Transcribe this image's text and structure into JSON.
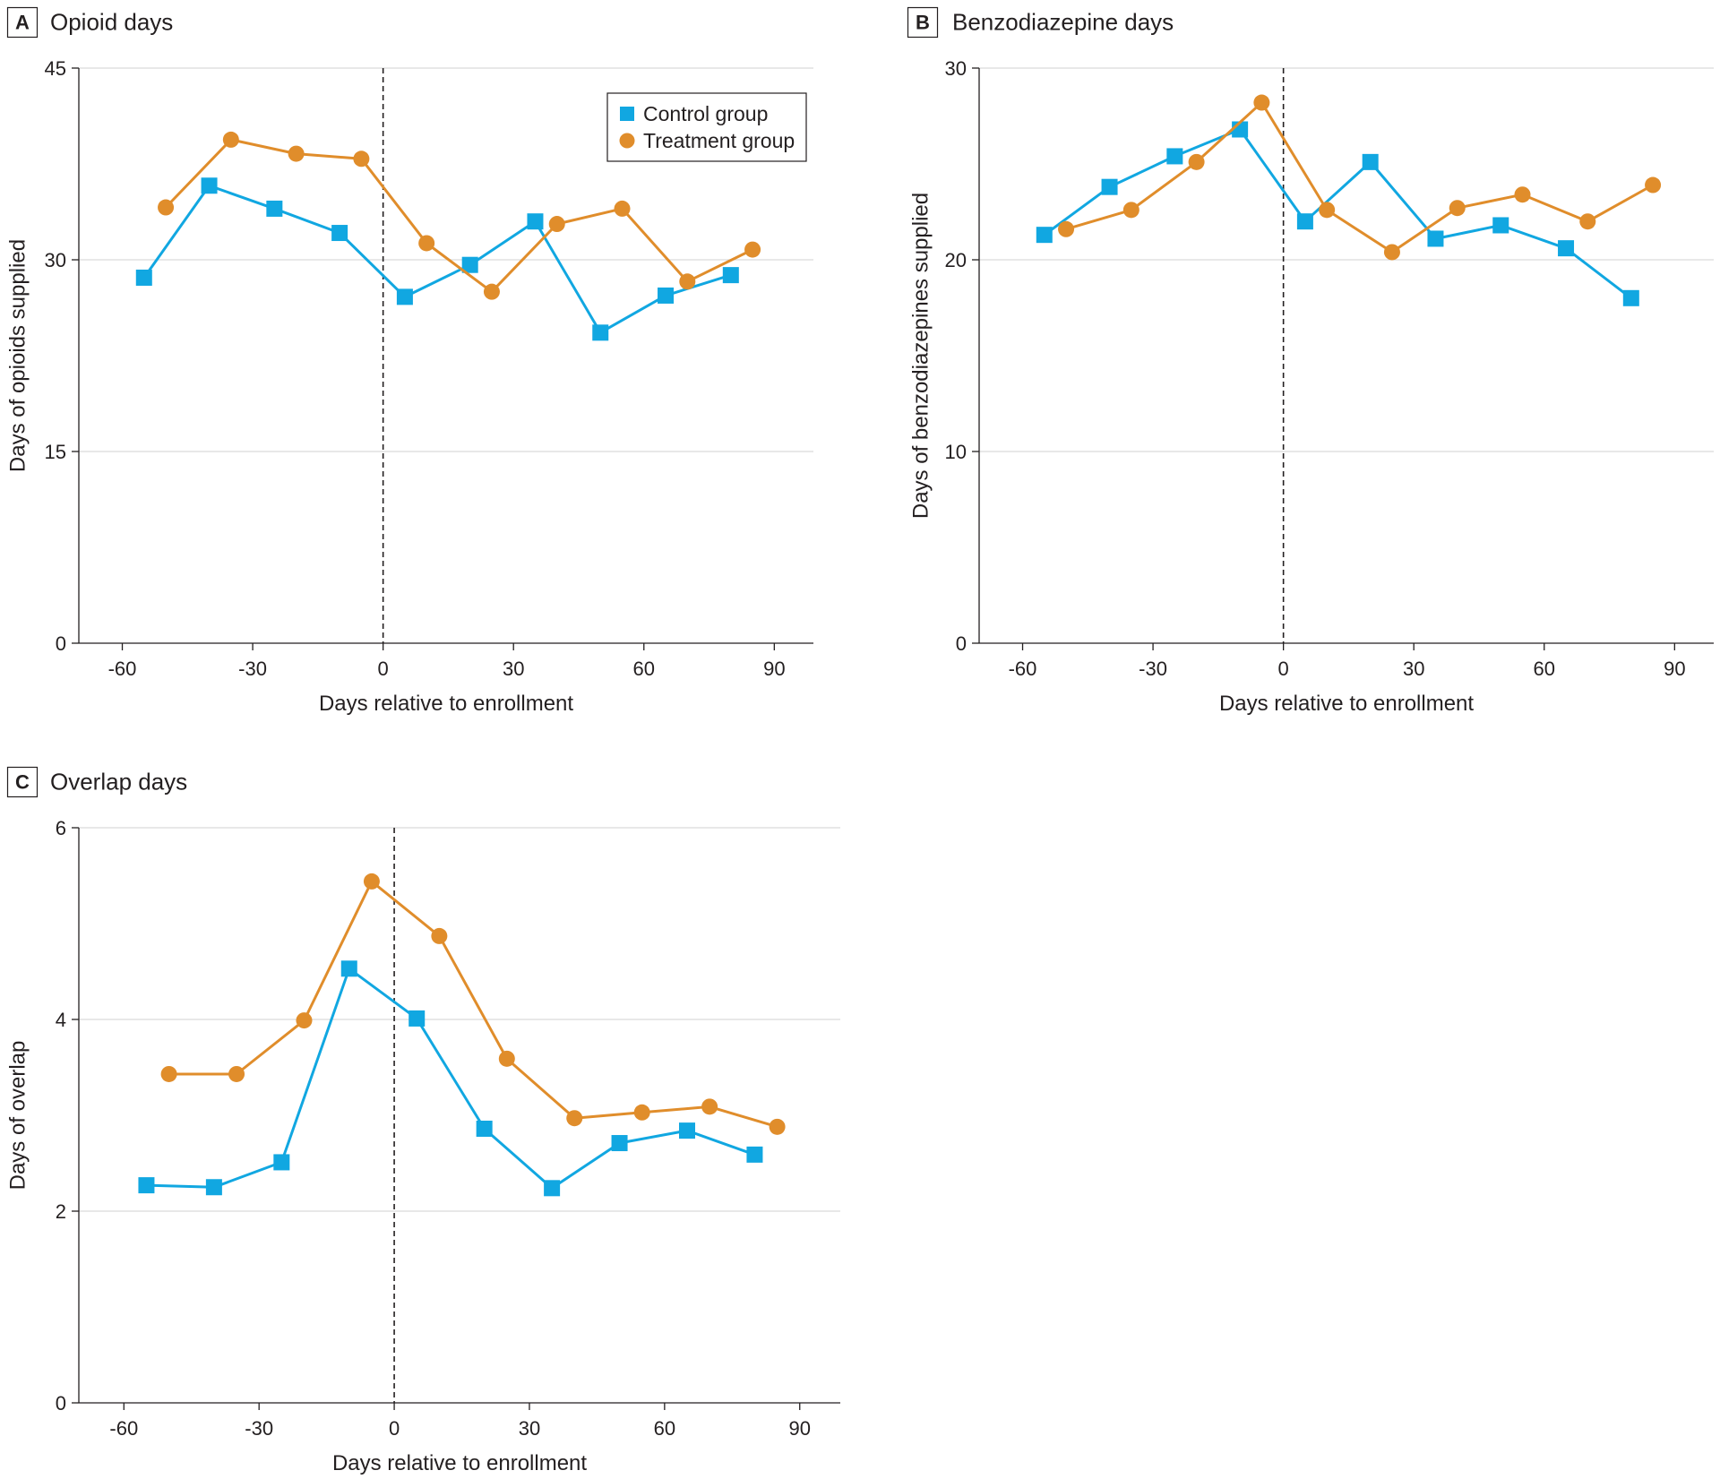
{
  "colors": {
    "control": "#11a7e1",
    "treatment": "#e08d2b",
    "grid": "#d9d9d9",
    "axis": "#231f20",
    "text": "#231f20"
  },
  "legend": {
    "control_label": "Control group",
    "treatment_label": "Treatment group",
    "control_marker": "square",
    "treatment_marker": "circle",
    "placement": "top-right of panel A"
  },
  "chart_data": [
    {
      "id": "A",
      "type": "line",
      "panel_letter": "A",
      "title": "Opioid days",
      "xlabel": "Days relative to enrollment",
      "ylabel": "Days of opioids supplied",
      "xlim": [
        -70,
        99
      ],
      "ylim": [
        0,
        45
      ],
      "xticks": [
        -60,
        -30,
        0,
        30,
        60,
        90
      ],
      "xtick_labels": [
        "-60",
        "-30",
        "0",
        "30",
        "60",
        "90"
      ],
      "yticks": [
        0,
        15,
        30,
        45
      ],
      "ytick_labels": [
        "0",
        "15",
        "30",
        "45"
      ],
      "grid": "horizontal at y ticks",
      "reference_line_x": 0,
      "series": [
        {
          "name": "Control group",
          "marker": "square",
          "x": [
            -55,
            -40,
            -25,
            -10,
            5,
            20,
            35,
            50,
            65,
            80
          ],
          "y": [
            28.6,
            35.8,
            34.0,
            32.1,
            27.1,
            29.6,
            33.0,
            24.3,
            27.2,
            28.8
          ]
        },
        {
          "name": "Treatment group",
          "marker": "circle",
          "x": [
            -50,
            -35,
            -20,
            -5,
            10,
            25,
            40,
            55,
            70,
            85
          ],
          "y": [
            34.1,
            39.4,
            38.3,
            37.9,
            31.3,
            27.5,
            32.8,
            34.0,
            28.3,
            30.8
          ]
        }
      ]
    },
    {
      "id": "B",
      "type": "line",
      "panel_letter": "B",
      "title": "Benzodiazepine days",
      "xlabel": "Days relative to enrollment",
      "ylabel": "Days of benzodiazepines supplied",
      "xlim": [
        -70,
        99
      ],
      "ylim": [
        0,
        30
      ],
      "xticks": [
        -60,
        -30,
        0,
        30,
        60,
        90
      ],
      "xtick_labels": [
        "-60",
        "-30",
        "0",
        "30",
        "60",
        "90"
      ],
      "yticks": [
        0,
        10,
        20,
        30
      ],
      "ytick_labels": [
        "0",
        "10",
        "20",
        "30"
      ],
      "grid": "horizontal at y ticks",
      "reference_line_x": 0,
      "series": [
        {
          "name": "Control group",
          "marker": "square",
          "x": [
            -55,
            -40,
            -25,
            -10,
            5,
            20,
            35,
            50,
            65,
            80
          ],
          "y": [
            21.3,
            23.8,
            25.4,
            26.8,
            22.0,
            25.1,
            21.1,
            21.8,
            20.6,
            18.0
          ]
        },
        {
          "name": "Treatment group",
          "marker": "circle",
          "x": [
            -50,
            -35,
            -20,
            -5,
            10,
            25,
            40,
            55,
            70,
            85
          ],
          "y": [
            21.6,
            22.6,
            25.1,
            28.2,
            22.6,
            20.4,
            22.7,
            23.4,
            22.0,
            23.9
          ]
        }
      ]
    },
    {
      "id": "C",
      "type": "line",
      "panel_letter": "C",
      "title": "Overlap days",
      "xlabel": "Days relative to enrollment",
      "ylabel": "Days of overlap",
      "xlim": [
        -70,
        99
      ],
      "ylim": [
        0,
        6
      ],
      "xticks": [
        -60,
        -30,
        0,
        30,
        60,
        90
      ],
      "xtick_labels": [
        "-60",
        "-30",
        "0",
        "30",
        "60",
        "90"
      ],
      "yticks": [
        0,
        2,
        4,
        6
      ],
      "ytick_labels": [
        "0",
        "2",
        "4",
        "6"
      ],
      "grid": "horizontal at y ticks",
      "reference_line_x": 0,
      "series": [
        {
          "name": "Control group",
          "marker": "square",
          "x": [
            -55,
            -40,
            -25,
            -10,
            5,
            20,
            35,
            50,
            65,
            80
          ],
          "y": [
            2.27,
            2.25,
            2.51,
            4.53,
            4.01,
            2.86,
            2.24,
            2.71,
            2.84,
            2.59
          ]
        },
        {
          "name": "Treatment group",
          "marker": "circle",
          "x": [
            -50,
            -35,
            -20,
            -5,
            10,
            25,
            40,
            55,
            70,
            85
          ],
          "y": [
            3.43,
            3.43,
            3.99,
            5.44,
            4.87,
            3.59,
            2.97,
            3.03,
            3.09,
            2.88
          ]
        }
      ]
    }
  ]
}
